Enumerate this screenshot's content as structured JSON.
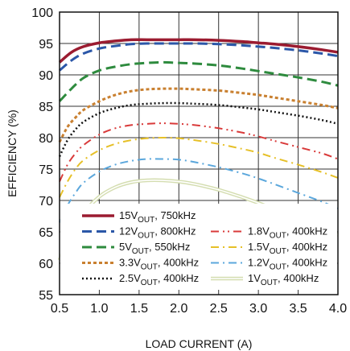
{
  "chart_data": {
    "type": "line",
    "xlabel": "LOAD CURRENT (A)",
    "ylabel": "EFFICIENCY (%)",
    "xlim": [
      0.5,
      4.0
    ],
    "ylim": [
      55,
      100
    ],
    "xticks": [
      "0.5",
      "1.0",
      "1.5",
      "2.0",
      "2.5",
      "3.0",
      "3.5",
      "4.0"
    ],
    "yticks": [
      "55",
      "60",
      "65",
      "70",
      "75",
      "80",
      "85",
      "90",
      "95",
      "100"
    ],
    "grid": true,
    "legend_position": "bottom",
    "series": [
      {
        "name": "15V",
        "sub": "OUT",
        "suffix": ", 750kHz",
        "color": "#9b1b30",
        "style": "solid",
        "x": [
          0.5,
          0.65,
          0.8,
          1.0,
          1.2,
          1.4,
          1.6,
          1.8,
          2.0,
          2.2,
          2.5,
          2.8,
          3.0,
          3.2,
          3.5,
          3.8,
          4.0
        ],
        "y": [
          92.0,
          93.6,
          94.5,
          95.1,
          95.4,
          95.6,
          95.6,
          95.6,
          95.6,
          95.6,
          95.5,
          95.3,
          95.1,
          94.9,
          94.5,
          94.0,
          93.6
        ]
      },
      {
        "name": "12V",
        "sub": "OUT",
        "suffix": ", 800kHz",
        "color": "#2b57a8",
        "style": "dash",
        "x": [
          0.5,
          0.65,
          0.8,
          1.0,
          1.2,
          1.4,
          1.6,
          1.8,
          2.0,
          2.2,
          2.5,
          2.8,
          3.0,
          3.2,
          3.5,
          3.8,
          4.0
        ],
        "y": [
          90.7,
          92.3,
          93.4,
          94.2,
          94.6,
          94.9,
          95.0,
          95.0,
          95.0,
          95.0,
          94.9,
          94.7,
          94.5,
          94.3,
          93.9,
          93.4,
          93.0
        ]
      },
      {
        "name": "1.8V",
        "sub": "OUT",
        "suffix": ", 400kHz",
        "color": "#d93a3a",
        "style": "dashdotdot",
        "x": [
          0.5,
          0.6,
          0.7,
          0.8,
          1.0,
          1.2,
          1.4,
          1.6,
          1.8,
          2.0,
          2.2,
          2.5,
          2.8,
          3.0,
          3.2,
          3.5,
          3.8,
          4.0
        ],
        "y": [
          73.0,
          75.7,
          77.5,
          78.8,
          80.5,
          81.5,
          82.0,
          82.2,
          82.3,
          82.2,
          82.0,
          81.5,
          80.8,
          80.2,
          79.5,
          78.5,
          77.5,
          76.6
        ]
      },
      {
        "name": "5V",
        "sub": "OUT",
        "suffix": ", 550kHz",
        "color": "#2e8b3e",
        "style": "dash",
        "x": [
          0.5,
          0.65,
          0.8,
          1.0,
          1.2,
          1.4,
          1.6,
          1.8,
          2.0,
          2.2,
          2.5,
          2.8,
          3.0,
          3.2,
          3.5,
          3.8,
          4.0
        ],
        "y": [
          85.8,
          87.8,
          89.5,
          90.7,
          91.3,
          91.7,
          91.9,
          92.0,
          91.9,
          91.8,
          91.5,
          91.0,
          90.6,
          90.2,
          89.6,
          88.9,
          88.3
        ]
      },
      {
        "name": "1.5V",
        "sub": "OUT",
        "suffix": ", 400kHz",
        "color": "#e6c028",
        "style": "dashdot",
        "x": [
          0.5,
          0.6,
          0.7,
          0.8,
          1.0,
          1.2,
          1.4,
          1.6,
          1.8,
          2.0,
          2.2,
          2.5,
          2.8,
          3.0,
          3.2,
          3.5,
          3.8,
          4.0
        ],
        "y": [
          70.5,
          73.0,
          75.0,
          76.4,
          78.0,
          79.0,
          79.6,
          79.9,
          80.0,
          79.9,
          79.6,
          79.0,
          78.2,
          77.6,
          76.8,
          75.7,
          74.5,
          73.6
        ]
      },
      {
        "name": "3.3V",
        "sub": "OUT",
        "suffix": ", 400kHz",
        "color": "#c98030",
        "style": "dot",
        "x": [
          0.5,
          0.6,
          0.7,
          0.8,
          1.0,
          1.2,
          1.4,
          1.6,
          1.8,
          2.0,
          2.2,
          2.5,
          2.8,
          3.0,
          3.2,
          3.5,
          3.8,
          4.0
        ],
        "y": [
          79.3,
          81.7,
          83.2,
          84.4,
          85.8,
          86.8,
          87.4,
          87.7,
          87.8,
          87.8,
          87.7,
          87.5,
          87.1,
          86.8,
          86.4,
          85.8,
          85.2,
          84.7
        ]
      },
      {
        "name": "1.2V",
        "sub": "OUT",
        "suffix": ", 400kHz",
        "color": "#5ba7dc",
        "style": "dashdot",
        "x": [
          0.5,
          0.6,
          0.7,
          0.8,
          1.0,
          1.2,
          1.4,
          1.6,
          1.8,
          2.0,
          2.2,
          2.5,
          2.8,
          3.0,
          3.2,
          3.5,
          3.8,
          4.0
        ],
        "y": [
          66.5,
          69.2,
          71.2,
          72.8,
          74.6,
          75.7,
          76.3,
          76.6,
          76.6,
          76.5,
          76.1,
          75.3,
          74.3,
          73.5,
          72.6,
          71.2,
          69.8,
          68.7
        ]
      },
      {
        "name": "2.5V",
        "sub": "OUT",
        "suffix": ", 400kHz",
        "color": "#111111",
        "style": "densedot",
        "x": [
          0.5,
          0.6,
          0.7,
          0.8,
          1.0,
          1.2,
          1.4,
          1.6,
          1.8,
          2.0,
          2.2,
          2.5,
          2.8,
          3.0,
          3.2,
          3.5,
          3.8,
          4.0
        ],
        "y": [
          77.0,
          79.6,
          81.3,
          82.5,
          83.9,
          84.7,
          85.2,
          85.4,
          85.5,
          85.5,
          85.4,
          85.2,
          84.8,
          84.5,
          84.1,
          83.5,
          82.8,
          82.2
        ]
      },
      {
        "name": "1V",
        "sub": "OUT",
        "suffix": ", 400kHz",
        "color": "#d4ddb0",
        "style": "double",
        "x": [
          0.5,
          0.6,
          0.7,
          0.8,
          1.0,
          1.2,
          1.4,
          1.6,
          1.8,
          2.0,
          2.2,
          2.5,
          2.8,
          3.0,
          3.2,
          3.5,
          3.8,
          4.0
        ],
        "y": [
          60.5,
          63.5,
          65.9,
          68.0,
          70.6,
          72.1,
          72.9,
          73.2,
          73.2,
          73.0,
          72.6,
          71.7,
          70.5,
          69.6,
          68.6,
          67.1,
          65.6,
          64.5
        ]
      }
    ]
  }
}
